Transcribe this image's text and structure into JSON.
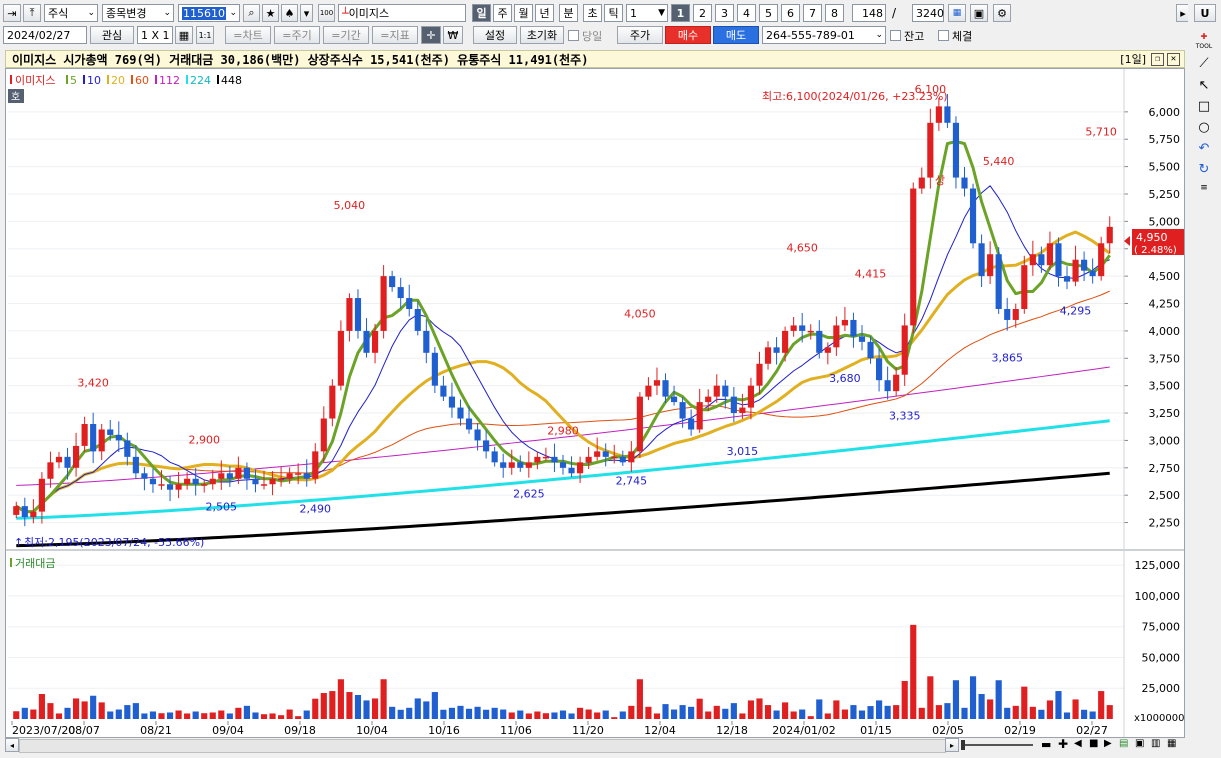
{
  "toolbar1": {
    "market_select": "주식",
    "stock_change": "종목변경",
    "stock_code": "115610",
    "stock_name": "이미지스",
    "periods": [
      "일",
      "주",
      "월",
      "년",
      "분",
      "초",
      "틱"
    ],
    "period_value": "1",
    "num_buttons": [
      "1",
      "2",
      "3",
      "4",
      "5",
      "6",
      "7",
      "8"
    ],
    "count_value": "148",
    "slash": "/",
    "total_value": "3240",
    "u_label": "U"
  },
  "toolbar2": {
    "date": "2024/02/27",
    "watch": "관심",
    "ratio": "1 X 1",
    "onebyone": "1:1",
    "chart_btn": "=차트",
    "cycle_btn": "=주기",
    "period_btn": "=기간",
    "indicator_btn": "=지표",
    "won": "₩",
    "settings": "설정",
    "reset": "초기화",
    "today": "당일",
    "price": "주가",
    "buy": "매수",
    "sell": "매도",
    "account": "264-555-789-01",
    "balance": "잔고",
    "fill": "체결"
  },
  "infobar": {
    "text": "이미지스  시가총액 769(억)  거래대금 30,186(백만)  상장주식수 15,541(천주)  유통주식 11,491(천주)",
    "right_label": "[1일]"
  },
  "legend": {
    "name": "이미지스",
    "ma": [
      {
        "label": "5",
        "color": "#6aa325"
      },
      {
        "label": "10",
        "color": "#1f1fd0"
      },
      {
        "label": "20",
        "color": "#e0b020"
      },
      {
        "label": "60",
        "color": "#e05010"
      },
      {
        "label": "112",
        "color": "#c020c0"
      },
      {
        "label": "224",
        "color": "#20e0e8"
      },
      {
        "label": "448",
        "color": "#000000"
      }
    ],
    "ho": "호"
  },
  "annotations": {
    "high": "최고:6,100(2024/01/26, +23.23%)",
    "low": "최저:2,195(2023/07/24, -55.66%)",
    "peaks": [
      "3,420",
      "2,900",
      "5,040",
      "4,050",
      "2,980",
      "4,650",
      "4,415",
      "6,100",
      "5,440",
      "5,710"
    ],
    "troughs": [
      "2,505",
      "2,490",
      "2,625",
      "2,745",
      "3,015",
      "3,680",
      "3,335",
      "3,865",
      "4,295"
    ],
    "sang": "상",
    "current_price": "4,950",
    "current_change": "( 2.48%)",
    "volume_title": "거래대금",
    "volume_unit": "x1000000"
  },
  "chart_data": [
    {
      "type": "candlestick",
      "title": "이미지스",
      "ylim": [
        2100,
        6300
      ],
      "y_ticks": [
        "6,000",
        "5,750",
        "5,500",
        "5,250",
        "5,000",
        "4,750",
        "4,500",
        "4,250",
        "4,000",
        "3,750",
        "3,500",
        "3,250",
        "3,000",
        "2,750",
        "2,500",
        "2,250"
      ],
      "x_labels": [
        "2023/07/20",
        "08/07",
        "08/21",
        "09/04",
        "09/18",
        "10/04",
        "10/16",
        "11/06",
        "11/20",
        "12/04",
        "12/18",
        "2024/01/02",
        "01/15",
        "02/05",
        "02/19",
        "02/27"
      ],
      "close_series": [
        2400,
        2300,
        2350,
        2650,
        2800,
        2850,
        2750,
        2950,
        3150,
        2900,
        3100,
        3050,
        3000,
        2850,
        2700,
        2650,
        2600,
        2600,
        2550,
        2600,
        2650,
        2600,
        2600,
        2650,
        2700,
        2650,
        2750,
        2650,
        2600,
        2600,
        2650,
        2650,
        2700,
        2700,
        2650,
        2900,
        3200,
        3500,
        4000,
        4300,
        4000,
        3800,
        4000,
        4500,
        4400,
        4300,
        4200,
        4000,
        3800,
        3500,
        3400,
        3300,
        3200,
        3100,
        3000,
        2900,
        2800,
        2750,
        2800,
        2750,
        2800,
        2850,
        2850,
        2800,
        2750,
        2700,
        2800,
        2850,
        2900,
        2850,
        2850,
        2800,
        2900,
        3400,
        3500,
        3550,
        3400,
        3350,
        3200,
        3100,
        3350,
        3400,
        3500,
        3400,
        3250,
        3300,
        3500,
        3700,
        3850,
        3800,
        4000,
        4050,
        4000,
        4000,
        3800,
        3850,
        4050,
        4100,
        3950,
        3900,
        3750,
        3550,
        3450,
        3600,
        4050,
        5300,
        5400,
        5900,
        6050,
        5900,
        5400,
        5300,
        4800,
        4500,
        4700,
        4200,
        4100,
        4200,
        4600,
        4700,
        4600,
        4800,
        4500,
        4450,
        4650,
        4550,
        4500,
        4800,
        4950
      ],
      "volume_ylim": [
        0,
        130000
      ],
      "volume_ticks": [
        "125,000",
        "100,000",
        "75,000",
        "50,000",
        "25,000"
      ]
    }
  ]
}
